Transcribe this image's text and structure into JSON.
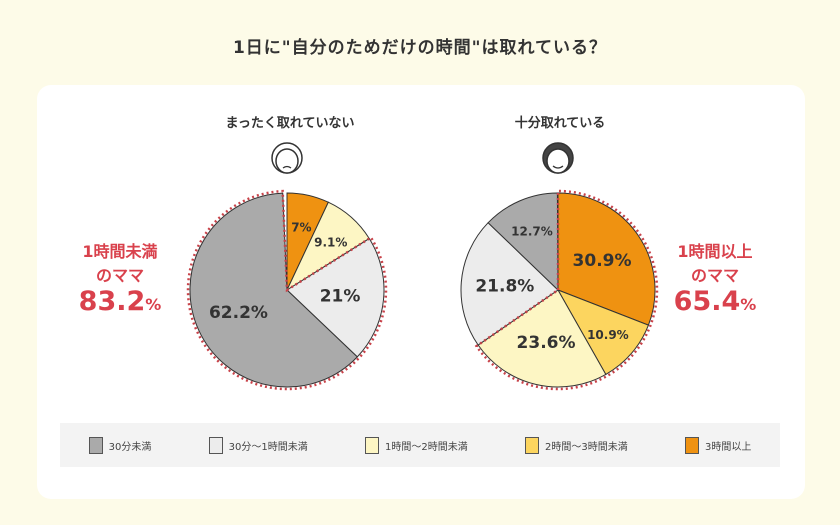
{
  "title": "1日に\"自分のためだけの時間\"は取れている？",
  "colors": {
    "lt30": "#aaaaaa",
    "30to60": "#ececec",
    "1to2": "#fdf6c4",
    "2to3": "#fcd55f",
    "3plus": "#ef9211",
    "highlight": "#c8434a"
  },
  "legend": [
    {
      "label": "30分未満",
      "key": "lt30"
    },
    {
      "label": "30分〜1時間未満",
      "key": "30to60"
    },
    {
      "label": "1時間〜2時間未満",
      "key": "1to2"
    },
    {
      "label": "2時間〜3時間未満",
      "key": "2to3"
    },
    {
      "label": "3時間以上",
      "key": "3plus"
    }
  ],
  "chart_data": [
    {
      "type": "pie",
      "title": "まったく取れていない",
      "icon": "worried-woman-face",
      "slices": [
        {
          "category": "3時間以上",
          "value": 7,
          "label": "7%"
        },
        {
          "category": "1時間〜2時間未満",
          "value": 9.1,
          "label": "9.1%"
        },
        {
          "category": "30分〜1時間未満",
          "value": 21,
          "label": "21%"
        },
        {
          "category": "30分未満",
          "value": 62.2,
          "label": "62.2%"
        }
      ],
      "highlight": {
        "line1": "1時間未満",
        "line2": "のママ",
        "value": "83.2",
        "unit": "%"
      }
    },
    {
      "type": "pie",
      "title": "十分取れている",
      "icon": "smiling-woman-face",
      "slices": [
        {
          "category": "3時間以上",
          "value": 30.9,
          "label": "30.9%"
        },
        {
          "category": "2時間〜3時間未満",
          "value": 10.9,
          "label": "10.9%"
        },
        {
          "category": "1時間〜2時間未満",
          "value": 23.6,
          "label": "23.6%"
        },
        {
          "category": "30分〜1時間未満",
          "value": 21.8,
          "label": "21.8%"
        },
        {
          "category": "30分未満",
          "value": 12.7,
          "label": "12.7%"
        }
      ],
      "highlight": {
        "line1": "1時間以上",
        "line2": "のママ",
        "value": "65.4",
        "unit": "%"
      }
    }
  ]
}
